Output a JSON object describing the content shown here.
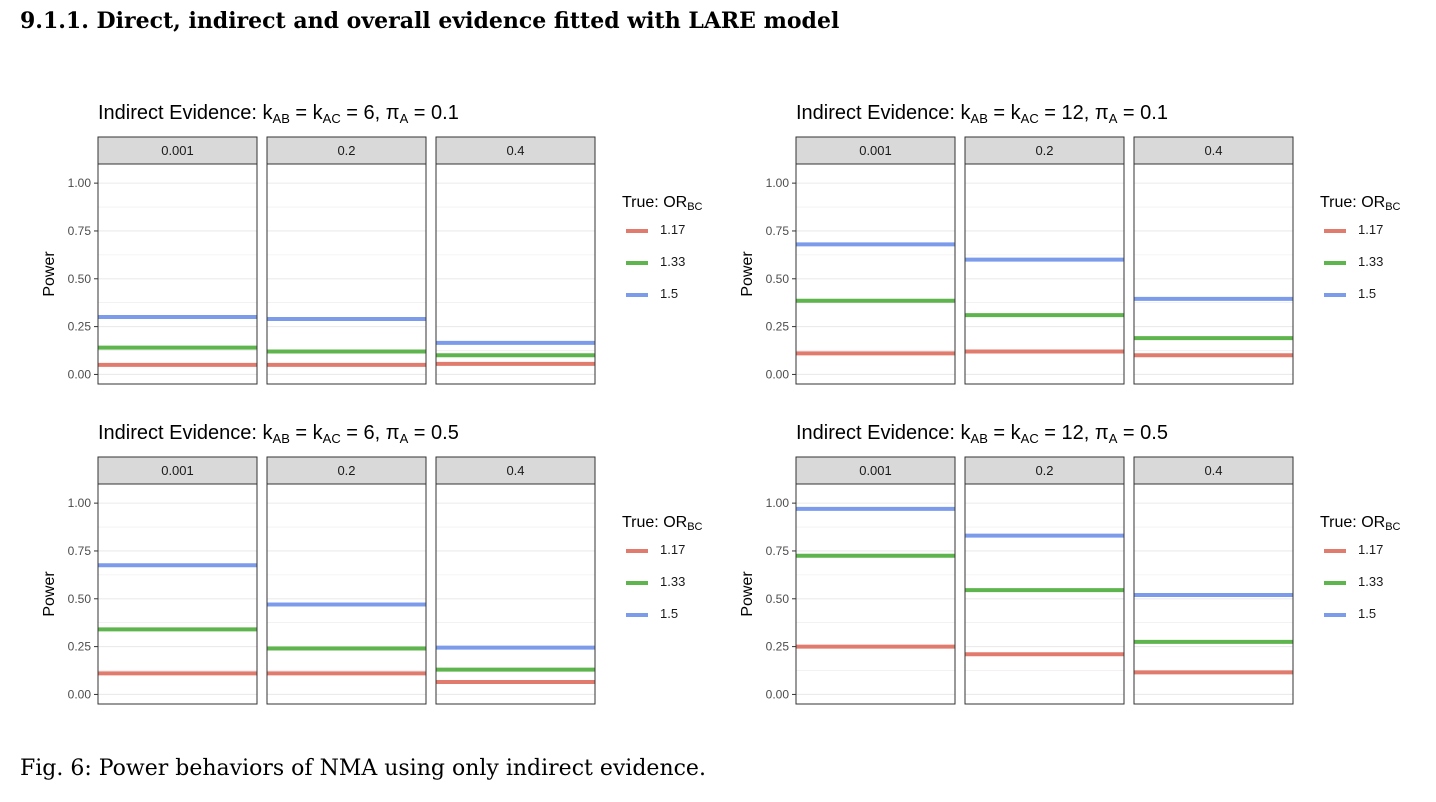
{
  "heading": "9.1.1. Direct, indirect and overall evidence fitted with LARE model",
  "caption": "Fig. 6: Power behaviors of NMA using only indirect evidence.",
  "colors": {
    "1.17": "#E07B6E",
    "1.33": "#5FB54D",
    "1.5": "#7C9CEB",
    "strip": "#D9D9D9",
    "grid": "#EBEBEB"
  },
  "chart_data": [
    {
      "type": "line",
      "title": {
        "prefix": "Indirect Evidence: k",
        "sub1": "AB",
        "mid1": " = k",
        "sub2": "AC",
        "mid2": " = 6, π",
        "sub3": "A",
        "suffix": " = 0.1"
      },
      "facets": [
        "0.001",
        "0.2",
        "0.4"
      ],
      "ylabel": "Power",
      "ylim": [
        -0.05,
        1.1
      ],
      "yticks": [
        "0.00",
        "0.25",
        "0.50",
        "0.75",
        "1.00"
      ],
      "legend": {
        "title": "True: OR",
        "title_sub": "BC",
        "entries": [
          "1.17",
          "1.33",
          "1.5"
        ]
      },
      "series": [
        {
          "name": "1.17",
          "values": [
            0.05,
            0.05,
            0.055
          ]
        },
        {
          "name": "1.33",
          "values": [
            0.14,
            0.12,
            0.1
          ]
        },
        {
          "name": "1.5",
          "values": [
            0.3,
            0.29,
            0.165
          ]
        }
      ]
    },
    {
      "type": "line",
      "title": {
        "prefix": "Indirect Evidence: k",
        "sub1": "AB",
        "mid1": " = k",
        "sub2": "AC",
        "mid2": " = 12, π",
        "sub3": "A",
        "suffix": " = 0.1"
      },
      "facets": [
        "0.001",
        "0.2",
        "0.4"
      ],
      "ylabel": "Power",
      "ylim": [
        -0.05,
        1.1
      ],
      "yticks": [
        "0.00",
        "0.25",
        "0.50",
        "0.75",
        "1.00"
      ],
      "legend": {
        "title": "True: OR",
        "title_sub": "BC",
        "entries": [
          "1.17",
          "1.33",
          "1.5"
        ]
      },
      "series": [
        {
          "name": "1.17",
          "values": [
            0.11,
            0.12,
            0.1
          ]
        },
        {
          "name": "1.33",
          "values": [
            0.385,
            0.31,
            0.19
          ]
        },
        {
          "name": "1.5",
          "values": [
            0.68,
            0.6,
            0.395
          ]
        }
      ]
    },
    {
      "type": "line",
      "title": {
        "prefix": "Indirect Evidence: k",
        "sub1": "AB",
        "mid1": " = k",
        "sub2": "AC",
        "mid2": " = 6, π",
        "sub3": "A",
        "suffix": " = 0.5"
      },
      "facets": [
        "0.001",
        "0.2",
        "0.4"
      ],
      "ylabel": "Power",
      "ylim": [
        -0.05,
        1.1
      ],
      "yticks": [
        "0.00",
        "0.25",
        "0.50",
        "0.75",
        "1.00"
      ],
      "legend": {
        "title": "True: OR",
        "title_sub": "BC",
        "entries": [
          "1.17",
          "1.33",
          "1.5"
        ]
      },
      "series": [
        {
          "name": "1.17",
          "values": [
            0.11,
            0.11,
            0.065
          ]
        },
        {
          "name": "1.33",
          "values": [
            0.34,
            0.24,
            0.13
          ]
        },
        {
          "name": "1.5",
          "values": [
            0.675,
            0.47,
            0.245
          ]
        }
      ]
    },
    {
      "type": "line",
      "title": {
        "prefix": "Indirect Evidence: k",
        "sub1": "AB",
        "mid1": " = k",
        "sub2": "AC",
        "mid2": " = 12, π",
        "sub3": "A",
        "suffix": " = 0.5"
      },
      "facets": [
        "0.001",
        "0.2",
        "0.4"
      ],
      "ylabel": "Power",
      "ylim": [
        -0.05,
        1.1
      ],
      "yticks": [
        "0.00",
        "0.25",
        "0.50",
        "0.75",
        "1.00"
      ],
      "legend": {
        "title": "True: OR",
        "title_sub": "BC",
        "entries": [
          "1.17",
          "1.33",
          "1.5"
        ]
      },
      "series": [
        {
          "name": "1.17",
          "values": [
            0.25,
            0.21,
            0.115
          ]
        },
        {
          "name": "1.33",
          "values": [
            0.725,
            0.545,
            0.275
          ]
        },
        {
          "name": "1.5",
          "values": [
            0.97,
            0.83,
            0.52
          ]
        }
      ]
    }
  ]
}
